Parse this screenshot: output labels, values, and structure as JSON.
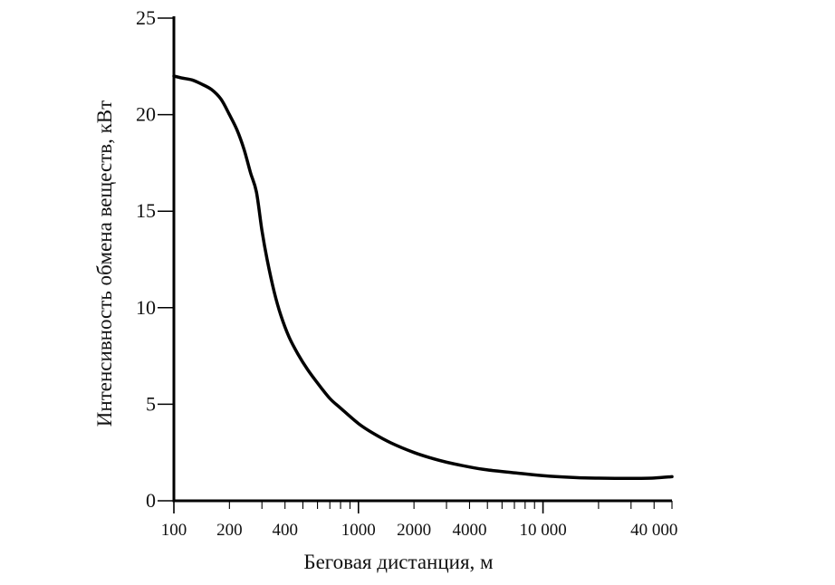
{
  "chart_data": {
    "type": "line",
    "title": "",
    "xlabel": "Беговая дистанция, м",
    "ylabel": "Интенсивность обмена веществ, кВт",
    "xscale": "log",
    "xlim": [
      100,
      50000
    ],
    "ylim": [
      0,
      25
    ],
    "yticks": [
      0,
      5,
      10,
      15,
      20,
      25
    ],
    "ytick_labels": [
      "0",
      "5",
      "10",
      "15",
      "20",
      "25"
    ],
    "xticks": [
      100,
      200,
      400,
      1000,
      2000,
      4000,
      10000,
      40000
    ],
    "xtick_labels": [
      "100",
      "200",
      "400",
      "1000",
      "2000",
      "4000",
      "10 000",
      "40 000"
    ],
    "grid": false,
    "series": [
      {
        "color": "#000000",
        "x": [
          100,
          110,
          125,
          140,
          160,
          180,
          200,
          220,
          240,
          260,
          280,
          300,
          320,
          350,
          380,
          420,
          470,
          530,
          600,
          700,
          800,
          1000,
          1200,
          1500,
          2000,
          2500,
          3000,
          4000,
          5000,
          7000,
          10000,
          15000,
          20000,
          30000,
          40000,
          50000
        ],
        "y": [
          22.0,
          21.9,
          21.8,
          21.6,
          21.3,
          20.8,
          20.0,
          19.2,
          18.2,
          17.0,
          16.0,
          14.0,
          12.5,
          10.8,
          9.6,
          8.5,
          7.6,
          6.8,
          6.1,
          5.3,
          4.8,
          4.0,
          3.5,
          3.0,
          2.5,
          2.2,
          2.0,
          1.75,
          1.6,
          1.45,
          1.3,
          1.2,
          1.17,
          1.16,
          1.18,
          1.25
        ]
      }
    ]
  }
}
